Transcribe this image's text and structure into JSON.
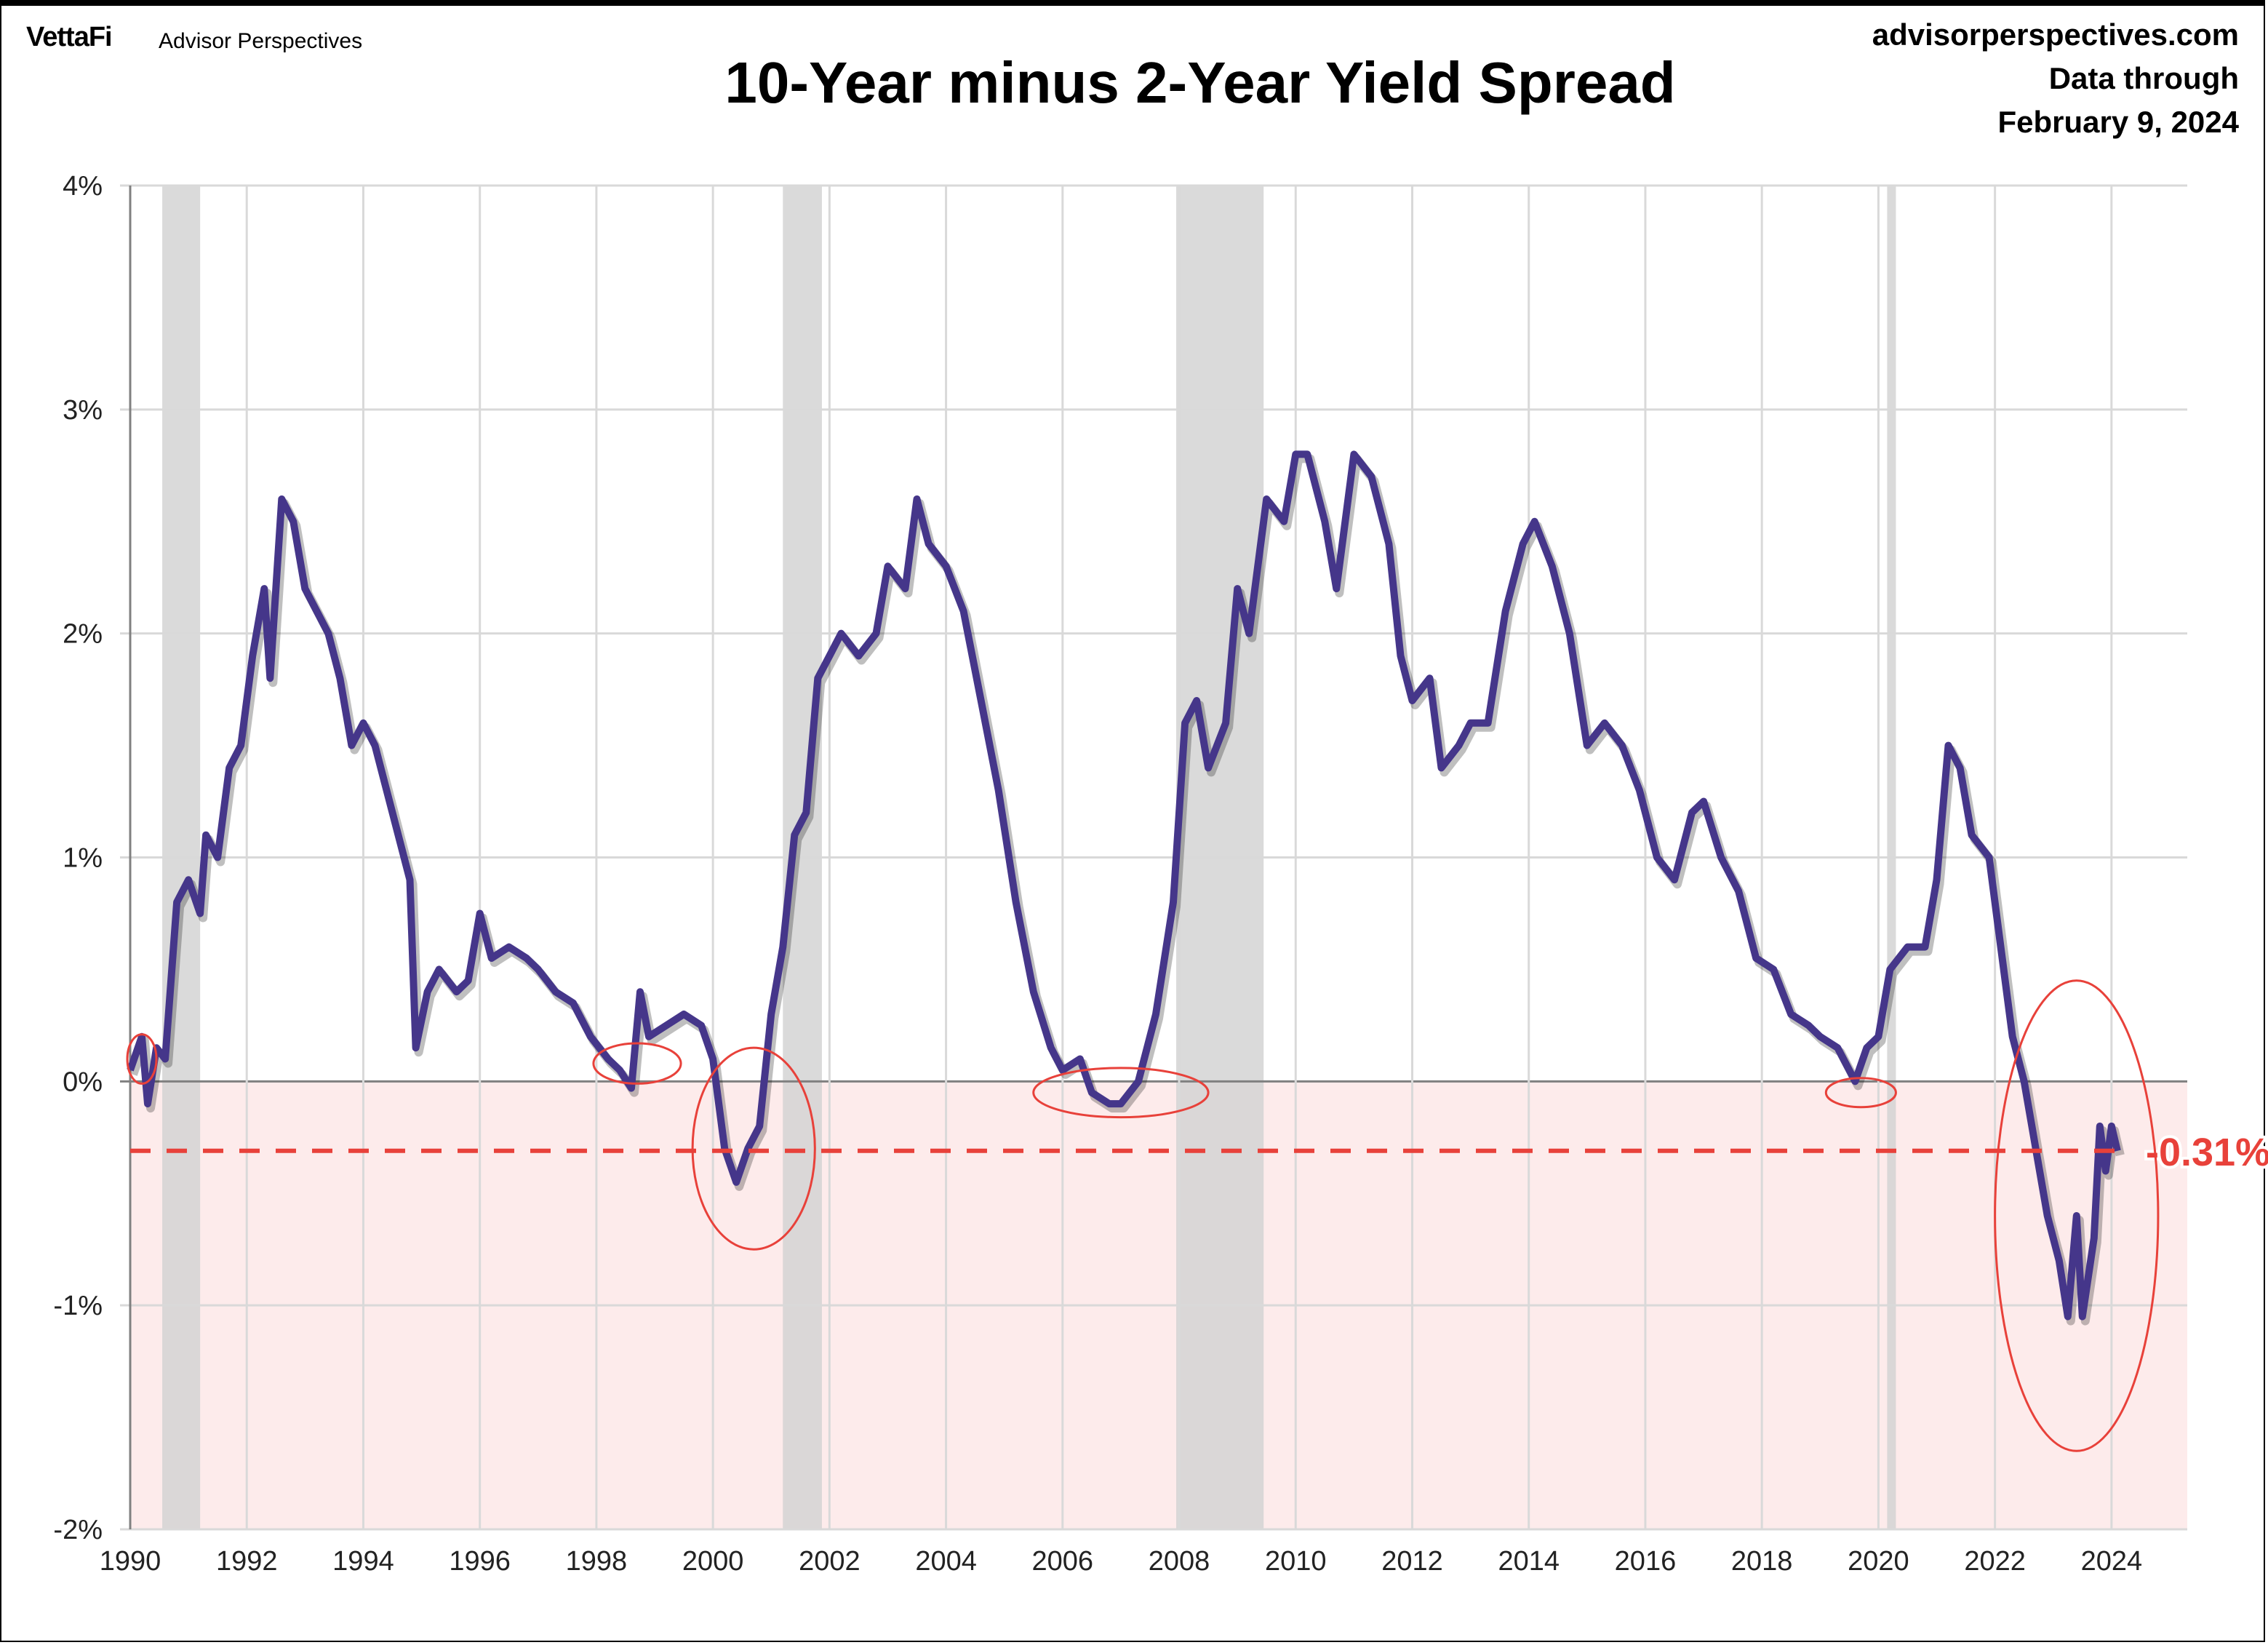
{
  "header": {
    "logo": "VettaFi",
    "logo_sub": "Advisor Perspectives",
    "site": "advisorperspectives.com",
    "data_through_label": "Data through",
    "data_through_date": "February 9, 2024"
  },
  "chart_data": {
    "type": "line",
    "title": "10-Year minus 2-Year Yield Spread",
    "xlabel": "",
    "ylabel": "",
    "xlim": [
      1990,
      2025.3
    ],
    "ylim": [
      -2,
      4
    ],
    "grid": true,
    "x_ticks": [
      "1990",
      "1992",
      "1994",
      "1996",
      "1998",
      "2000",
      "2002",
      "2004",
      "2006",
      "2008",
      "2010",
      "2012",
      "2014",
      "2016",
      "2018",
      "2020",
      "2022",
      "2024"
    ],
    "y_ticks": [
      "-2%",
      "-1%",
      "0%",
      "1%",
      "2%",
      "3%",
      "4%"
    ],
    "colors": {
      "series": "#45368a",
      "recession": "#d3d3d3",
      "negative_zone": "#fdebeb",
      "annotation": "#e8413a"
    },
    "recessions": [
      [
        1990.55,
        1991.2
      ],
      [
        2001.2,
        2001.87
      ],
      [
        2007.95,
        2009.45
      ],
      [
        2020.15,
        2020.3
      ]
    ],
    "latest_value": -0.31,
    "latest_label": "-0.31%",
    "inversion_highlights": [
      1990.2,
      1998.7,
      2000.7,
      2007.0,
      2019.7,
      2023.4
    ],
    "series": [
      {
        "x": [
          1990.0,
          1990.2,
          1990.3,
          1990.45,
          1990.6,
          1990.8,
          1991.0,
          1991.2,
          1991.3,
          1991.5,
          1991.7,
          1991.9,
          1992.1,
          1992.3,
          1992.4,
          1992.6,
          1992.8,
          1993.0,
          1993.2,
          1993.4,
          1993.6,
          1993.8,
          1994.0,
          1994.2,
          1994.4,
          1994.6,
          1994.8,
          1994.9,
          1995.1,
          1995.3,
          1995.6,
          1995.8,
          1996.0,
          1996.2,
          1996.5,
          1996.8,
          1997.0,
          1997.3,
          1997.6,
          1997.9,
          1998.2,
          1998.4,
          1998.6,
          1998.75,
          1998.9,
          1999.2,
          1999.5,
          1999.8,
          2000.0,
          2000.2,
          2000.4,
          2000.6,
          2000.8,
          2001.0,
          2001.2,
          2001.4,
          2001.6,
          2001.8,
          2002.0,
          2002.2,
          2002.5,
          2002.8,
          2003.0,
          2003.3,
          2003.5,
          2003.7,
          2004.0,
          2004.3,
          2004.6,
          2004.9,
          2005.2,
          2005.5,
          2005.8,
          2006.0,
          2006.3,
          2006.5,
          2006.8,
          2007.0,
          2007.3,
          2007.6,
          2007.9,
          2008.1,
          2008.3,
          2008.5,
          2008.8,
          2009.0,
          2009.2,
          2009.5,
          2009.8,
          2010.0,
          2010.2,
          2010.5,
          2010.7,
          2011.0,
          2011.3,
          2011.6,
          2011.8,
          2012.0,
          2012.3,
          2012.5,
          2012.8,
          2013.0,
          2013.3,
          2013.6,
          2013.9,
          2014.1,
          2014.4,
          2014.7,
          2015.0,
          2015.3,
          2015.6,
          2015.9,
          2016.2,
          2016.5,
          2016.8,
          2017.0,
          2017.3,
          2017.6,
          2017.9,
          2018.2,
          2018.5,
          2018.8,
          2019.0,
          2019.3,
          2019.6,
          2019.8,
          2020.0,
          2020.2,
          2020.5,
          2020.8,
          2021.0,
          2021.2,
          2021.4,
          2021.6,
          2021.9,
          2022.1,
          2022.3,
          2022.5,
          2022.7,
          2022.9,
          2023.1,
          2023.25,
          2023.4,
          2023.5,
          2023.7,
          2023.8,
          2023.9,
          2024.0,
          2024.1
        ],
        "y": [
          0.05,
          0.2,
          -0.1,
          0.15,
          0.1,
          0.8,
          0.9,
          0.75,
          1.1,
          1.0,
          1.4,
          1.5,
          1.9,
          2.2,
          1.8,
          2.6,
          2.5,
          2.2,
          2.1,
          2.0,
          1.8,
          1.5,
          1.6,
          1.5,
          1.3,
          1.1,
          0.9,
          0.15,
          0.4,
          0.5,
          0.4,
          0.45,
          0.75,
          0.55,
          0.6,
          0.55,
          0.5,
          0.4,
          0.35,
          0.2,
          0.1,
          0.05,
          -0.03,
          0.4,
          0.2,
          0.25,
          0.3,
          0.25,
          0.1,
          -0.3,
          -0.45,
          -0.3,
          -0.2,
          0.3,
          0.6,
          1.1,
          1.2,
          1.8,
          1.9,
          2.0,
          1.9,
          2.0,
          2.3,
          2.2,
          2.6,
          2.4,
          2.3,
          2.1,
          1.7,
          1.3,
          0.8,
          0.4,
          0.15,
          0.05,
          0.1,
          -0.05,
          -0.1,
          -0.1,
          0.0,
          0.3,
          0.8,
          1.6,
          1.7,
          1.4,
          1.6,
          2.2,
          2.0,
          2.6,
          2.5,
          2.8,
          2.8,
          2.5,
          2.2,
          2.8,
          2.7,
          2.4,
          1.9,
          1.7,
          1.8,
          1.4,
          1.5,
          1.6,
          1.6,
          2.1,
          2.4,
          2.5,
          2.3,
          2.0,
          1.5,
          1.6,
          1.5,
          1.3,
          1.0,
          0.9,
          1.2,
          1.25,
          1.0,
          0.85,
          0.55,
          0.5,
          0.3,
          0.25,
          0.2,
          0.15,
          0.0,
          0.15,
          0.2,
          0.5,
          0.6,
          0.6,
          0.9,
          1.5,
          1.4,
          1.1,
          1.0,
          0.6,
          0.2,
          0.0,
          -0.3,
          -0.6,
          -0.8,
          -1.05,
          -0.6,
          -1.05,
          -0.7,
          -0.2,
          -0.4,
          -0.2,
          -0.31
        ]
      }
    ]
  }
}
